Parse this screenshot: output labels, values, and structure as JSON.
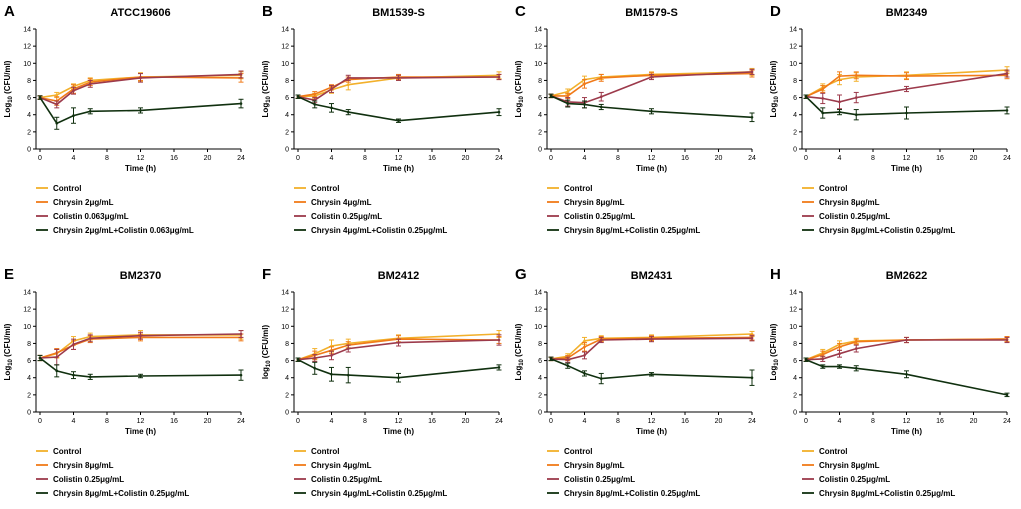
{
  "colors": {
    "control": "#f2b02b",
    "chrysin": "#f07a19",
    "colistin": "#9c3a4b",
    "combo": "#10300f",
    "axis": "#000000"
  },
  "chart_data": [
    {
      "letter": "A",
      "title": "ATCC19606",
      "type": "line",
      "xlabel": "Time (h)",
      "ylabel_prefix": "Log",
      "ylabel_sub": "10",
      "ylabel_suffix": " (CFU/ml)",
      "xlim": [
        0,
        24
      ],
      "ylim": [
        0,
        14
      ],
      "xticks": [
        0,
        4,
        8,
        12,
        16,
        20,
        24
      ],
      "yticks": [
        0,
        2,
        4,
        6,
        8,
        10,
        12,
        14
      ],
      "x": [
        0,
        2,
        4,
        6,
        12,
        24
      ],
      "series": [
        {
          "key": "control",
          "name": "Control",
          "values": [
            6.0,
            6.3,
            7.3,
            8.0,
            8.4,
            8.6
          ],
          "err": [
            0.2,
            0.3,
            0.3,
            0.3,
            0.5,
            0.4
          ]
        },
        {
          "key": "chrysin",
          "name": "Chrysin 2μg/mL",
          "values": [
            6.0,
            5.6,
            7.0,
            7.8,
            8.4,
            8.3
          ],
          "err": [
            0.2,
            0.5,
            0.5,
            0.4,
            0.4,
            0.5
          ]
        },
        {
          "key": "colistin",
          "name": "Colistin 0.063μg/mL",
          "values": [
            6.0,
            5.2,
            6.8,
            7.6,
            8.3,
            8.7
          ],
          "err": [
            0.2,
            0.4,
            0.4,
            0.4,
            0.5,
            0.4
          ]
        },
        {
          "key": "combo",
          "name": "Chrysin 2μg/mL+Colistin 0.063μg/mL",
          "values": [
            6.0,
            3.0,
            3.9,
            4.4,
            4.5,
            5.3
          ],
          "err": [
            0.2,
            0.7,
            0.9,
            0.3,
            0.3,
            0.5
          ]
        }
      ]
    },
    {
      "letter": "B",
      "title": "BM1539-S",
      "type": "line",
      "xlabel": "Time (h)",
      "ylabel_prefix": "Log",
      "ylabel_sub": "10",
      "ylabel_suffix": " (CFU/ml)",
      "xlim": [
        0,
        24
      ],
      "ylim": [
        0,
        14
      ],
      "xticks": [
        0,
        4,
        8,
        12,
        16,
        20,
        24
      ],
      "yticks": [
        0,
        2,
        4,
        6,
        8,
        10,
        12,
        14
      ],
      "x": [
        0,
        2,
        4,
        6,
        12,
        24
      ],
      "series": [
        {
          "key": "control",
          "name": "Control",
          "values": [
            6.1,
            6.2,
            6.9,
            7.5,
            8.3,
            8.6
          ],
          "err": [
            0.2,
            0.3,
            0.4,
            0.6,
            0.3,
            0.4
          ]
        },
        {
          "key": "chrysin",
          "name": "Chrysin 4μg/mL",
          "values": [
            6.1,
            6.4,
            7.2,
            8.1,
            8.4,
            8.4
          ],
          "err": [
            0.2,
            0.3,
            0.3,
            0.3,
            0.3,
            0.3
          ]
        },
        {
          "key": "colistin",
          "name": "Colistin 0.25μg/mL",
          "values": [
            6.1,
            5.7,
            7.0,
            8.3,
            8.3,
            8.4
          ],
          "err": [
            0.2,
            0.3,
            0.4,
            0.3,
            0.3,
            0.3
          ]
        },
        {
          "key": "combo",
          "name": "Chrysin 4μg/mL+Colistin 0.25μg/mL",
          "values": [
            6.1,
            5.2,
            4.8,
            4.3,
            3.3,
            4.3
          ],
          "err": [
            0.2,
            0.4,
            0.5,
            0.3,
            0.2,
            0.4
          ]
        }
      ]
    },
    {
      "letter": "C",
      "title": "BM1579-S",
      "type": "line",
      "xlabel": "Time (h)",
      "ylabel_prefix": "Log",
      "ylabel_sub": "10",
      "ylabel_suffix": " (CFU/ml)",
      "xlim": [
        0,
        24
      ],
      "ylim": [
        0,
        14
      ],
      "xticks": [
        0,
        4,
        8,
        12,
        16,
        20,
        24
      ],
      "yticks": [
        0,
        2,
        4,
        6,
        8,
        10,
        12,
        14
      ],
      "x": [
        0,
        2,
        4,
        6,
        12,
        24
      ],
      "series": [
        {
          "key": "control",
          "name": "Control",
          "values": [
            6.2,
            6.7,
            8.1,
            8.4,
            8.7,
            9.0
          ],
          "err": [
            0.2,
            0.3,
            0.4,
            0.3,
            0.3,
            0.4
          ]
        },
        {
          "key": "chrysin",
          "name": "Chrysin 8μg/mL",
          "values": [
            6.2,
            6.2,
            7.6,
            8.3,
            8.6,
            8.8
          ],
          "err": [
            0.2,
            0.3,
            0.5,
            0.4,
            0.3,
            0.4
          ]
        },
        {
          "key": "colistin",
          "name": "Colistin 0.25μg/mL",
          "values": [
            6.2,
            5.5,
            5.4,
            6.1,
            8.4,
            9.0
          ],
          "err": [
            0.2,
            0.5,
            0.6,
            0.5,
            0.3,
            0.3
          ]
        },
        {
          "key": "combo",
          "name": "Chrysin 8μg/mL+Colistin 0.25μg/mL",
          "values": [
            6.2,
            5.3,
            5.2,
            4.9,
            4.4,
            3.7
          ],
          "err": [
            0.2,
            0.4,
            0.4,
            0.3,
            0.3,
            0.5
          ]
        }
      ]
    },
    {
      "letter": "D",
      "title": "BM2349",
      "type": "line",
      "xlabel": "Time (h)",
      "ylabel_prefix": "Log",
      "ylabel_sub": "10",
      "ylabel_suffix": " (CFU/ml)",
      "xlim": [
        0,
        24
      ],
      "ylim": [
        0,
        14
      ],
      "xticks": [
        0,
        4,
        8,
        12,
        16,
        20,
        24
      ],
      "yticks": [
        0,
        2,
        4,
        6,
        8,
        10,
        12,
        14
      ],
      "x": [
        0,
        2,
        4,
        6,
        12,
        24
      ],
      "series": [
        {
          "key": "control",
          "name": "Control",
          "values": [
            6.1,
            7.2,
            8.1,
            8.4,
            8.6,
            9.2
          ],
          "err": [
            0.2,
            0.4,
            0.6,
            0.5,
            0.4,
            0.4
          ]
        },
        {
          "key": "chrysin",
          "name": "Chrysin 8μg/mL",
          "values": [
            6.1,
            7.0,
            8.5,
            8.6,
            8.5,
            8.6
          ],
          "err": [
            0.2,
            0.4,
            0.5,
            0.4,
            0.4,
            0.4
          ]
        },
        {
          "key": "colistin",
          "name": "Colistin 0.25μg/mL",
          "values": [
            6.1,
            5.9,
            5.5,
            6.0,
            7.0,
            8.8
          ],
          "err": [
            0.2,
            0.6,
            0.8,
            0.6,
            0.3,
            0.4
          ]
        },
        {
          "key": "combo",
          "name": "Chrysin 8μg/mL+Colistin 0.25μg/mL",
          "values": [
            6.1,
            4.2,
            4.3,
            4.0,
            4.2,
            4.5
          ],
          "err": [
            0.2,
            0.6,
            0.3,
            0.6,
            0.7,
            0.4
          ]
        }
      ]
    },
    {
      "letter": "E",
      "title": "BM2370",
      "type": "line",
      "xlabel": "Time (h)",
      "ylabel_prefix": "Log",
      "ylabel_sub": "10",
      "ylabel_suffix": " (CFU/ml)",
      "xlim": [
        0,
        24
      ],
      "ylim": [
        0,
        14
      ],
      "xticks": [
        0,
        4,
        8,
        12,
        16,
        20,
        24
      ],
      "yticks": [
        0,
        2,
        4,
        6,
        8,
        10,
        12,
        14
      ],
      "x": [
        0,
        2,
        4,
        6,
        12,
        24
      ],
      "series": [
        {
          "key": "control",
          "name": "Control",
          "values": [
            6.3,
            6.8,
            8.3,
            8.8,
            9.0,
            9.0
          ],
          "err": [
            0.3,
            0.5,
            0.5,
            0.4,
            0.5,
            0.5
          ]
        },
        {
          "key": "chrysin",
          "name": "Chrysin 8μg/mL",
          "values": [
            6.3,
            6.9,
            7.8,
            8.5,
            8.7,
            8.7
          ],
          "err": [
            0.3,
            0.5,
            0.5,
            0.4,
            0.4,
            0.4
          ]
        },
        {
          "key": "colistin",
          "name": "Colistin 0.25μg/mL",
          "values": [
            6.3,
            6.4,
            7.9,
            8.6,
            8.9,
            9.1
          ],
          "err": [
            0.3,
            0.9,
            0.6,
            0.4,
            0.4,
            0.4
          ]
        },
        {
          "key": "combo",
          "name": "Chrysin 8μg/mL+Colistin 0.25μg/mL",
          "values": [
            6.3,
            4.8,
            4.3,
            4.1,
            4.2,
            4.3
          ],
          "err": [
            0.3,
            0.7,
            0.4,
            0.3,
            0.2,
            0.6
          ]
        }
      ]
    },
    {
      "letter": "F",
      "title": "BM2412",
      "type": "line",
      "xlabel": "Time (h)",
      "ylabel_prefix": "log",
      "ylabel_sub": "10",
      "ylabel_suffix": " (CFU/ml)",
      "xlim": [
        0,
        24
      ],
      "ylim": [
        0,
        14
      ],
      "xticks": [
        0,
        4,
        8,
        12,
        16,
        20,
        24
      ],
      "yticks": [
        0,
        2,
        4,
        6,
        8,
        10,
        12,
        14
      ],
      "x": [
        0,
        2,
        4,
        6,
        12,
        24
      ],
      "series": [
        {
          "key": "control",
          "name": "Control",
          "values": [
            6.1,
            6.8,
            7.7,
            8.0,
            8.6,
            9.1
          ],
          "err": [
            0.2,
            0.6,
            0.7,
            0.5,
            0.4,
            0.4
          ]
        },
        {
          "key": "chrysin",
          "name": "Chrysin 4μg/mL",
          "values": [
            6.1,
            6.6,
            7.2,
            7.8,
            8.5,
            8.4
          ],
          "err": [
            0.2,
            0.5,
            0.4,
            0.4,
            0.4,
            0.4
          ]
        },
        {
          "key": "colistin",
          "name": "Colistin 0.25μg/mL",
          "values": [
            6.1,
            6.3,
            6.6,
            7.4,
            8.1,
            8.4
          ],
          "err": [
            0.2,
            0.4,
            0.5,
            0.4,
            0.4,
            0.6
          ]
        },
        {
          "key": "combo",
          "name": "Chrysin 4μg/mL+Colistin 0.25μg/mL",
          "values": [
            6.1,
            5.1,
            4.4,
            4.3,
            4.0,
            5.2
          ],
          "err": [
            0.2,
            0.7,
            0.8,
            0.9,
            0.5,
            0.3
          ]
        }
      ]
    },
    {
      "letter": "G",
      "title": "BM2431",
      "type": "line",
      "xlabel": "Time (h)",
      "ylabel_prefix": "Log",
      "ylabel_sub": "10",
      "ylabel_suffix": " (CFU/ml)",
      "xlim": [
        0,
        24
      ],
      "ylim": [
        0,
        14
      ],
      "xticks": [
        0,
        4,
        8,
        12,
        16,
        20,
        24
      ],
      "yticks": [
        0,
        2,
        4,
        6,
        8,
        10,
        12,
        14
      ],
      "x": [
        0,
        2,
        4,
        6,
        12,
        24
      ],
      "series": [
        {
          "key": "control",
          "name": "Control",
          "values": [
            6.2,
            6.5,
            8.3,
            8.6,
            8.7,
            9.1
          ],
          "err": [
            0.2,
            0.3,
            0.4,
            0.3,
            0.3,
            0.3
          ]
        },
        {
          "key": "chrysin",
          "name": "Chrysin 8μg/mL",
          "values": [
            6.2,
            6.3,
            7.6,
            8.5,
            8.6,
            8.7
          ],
          "err": [
            0.2,
            0.3,
            0.5,
            0.3,
            0.3,
            0.3
          ]
        },
        {
          "key": "colistin",
          "name": "Colistin 0.25μg/mL",
          "values": [
            6.2,
            6.1,
            6.6,
            8.4,
            8.5,
            8.6
          ],
          "err": [
            0.2,
            0.3,
            0.4,
            0.3,
            0.3,
            0.3
          ]
        },
        {
          "key": "combo",
          "name": "Chrysin 8μg/mL+Colistin 0.25μg/mL",
          "values": [
            6.2,
            5.4,
            4.5,
            3.9,
            4.4,
            4.0
          ],
          "err": [
            0.2,
            0.3,
            0.3,
            0.6,
            0.2,
            0.9
          ]
        }
      ]
    },
    {
      "letter": "H",
      "title": "BM2622",
      "type": "line",
      "xlabel": "Time (h)",
      "ylabel_prefix": "Log",
      "ylabel_sub": "10",
      "ylabel_suffix": " (CFU/ml)",
      "xlim": [
        0,
        24
      ],
      "ylim": [
        0,
        14
      ],
      "xticks": [
        0,
        4,
        8,
        12,
        16,
        20,
        24
      ],
      "yticks": [
        0,
        2,
        4,
        6,
        8,
        10,
        12,
        14
      ],
      "x": [
        0,
        2,
        4,
        6,
        12,
        24
      ],
      "series": [
        {
          "key": "control",
          "name": "Control",
          "values": [
            6.1,
            6.9,
            7.9,
            8.3,
            8.4,
            8.5
          ],
          "err": [
            0.2,
            0.4,
            0.4,
            0.3,
            0.3,
            0.3
          ]
        },
        {
          "key": "chrysin",
          "name": "Chrysin 8μg/mL",
          "values": [
            6.1,
            6.7,
            7.6,
            8.2,
            8.4,
            8.5
          ],
          "err": [
            0.2,
            0.4,
            0.4,
            0.3,
            0.3,
            0.3
          ]
        },
        {
          "key": "colistin",
          "name": "Colistin 0.25μg/mL",
          "values": [
            6.1,
            6.2,
            6.8,
            7.4,
            8.4,
            8.4
          ],
          "err": [
            0.2,
            0.3,
            0.4,
            0.4,
            0.3,
            0.3
          ]
        },
        {
          "key": "combo",
          "name": "Chrysin 8μg/mL+Colistin 0.25μg/mL",
          "values": [
            6.1,
            5.3,
            5.3,
            5.1,
            4.4,
            2.0
          ],
          "err": [
            0.2,
            0.2,
            0.2,
            0.3,
            0.4,
            0.2
          ]
        }
      ]
    }
  ]
}
